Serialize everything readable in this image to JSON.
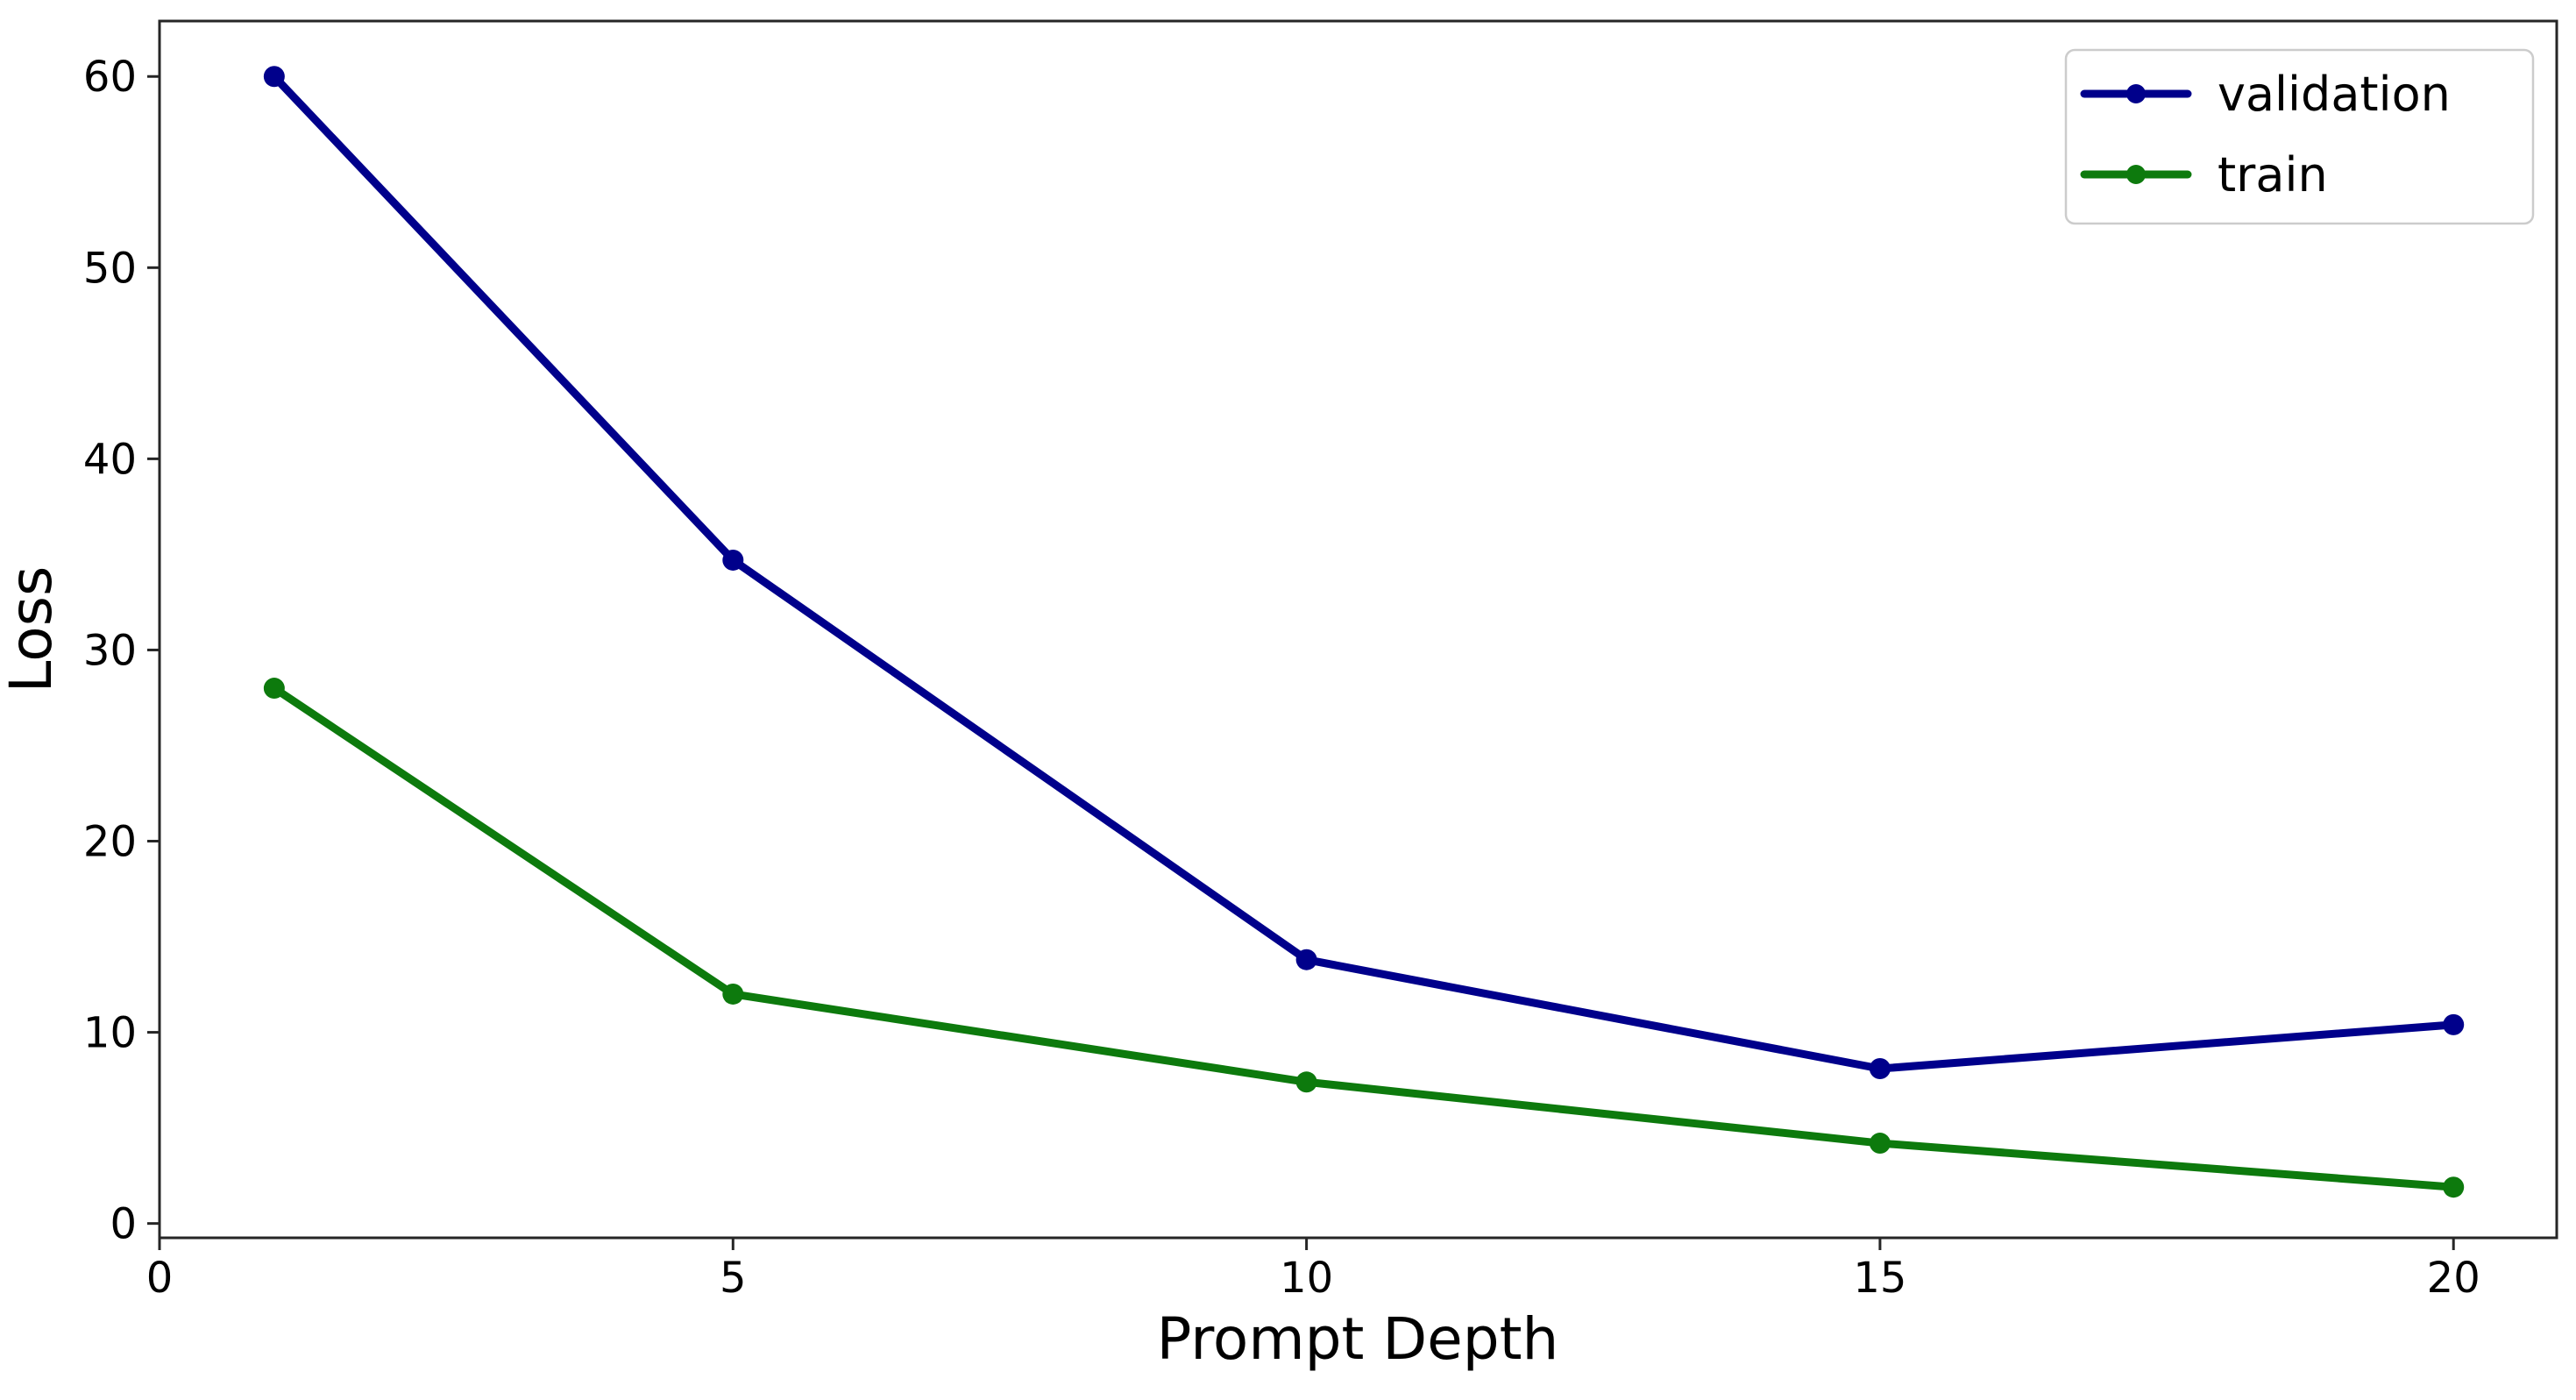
{
  "figure": {
    "background": "#ffffff",
    "spine_color": "#262626",
    "text_color": "#000000"
  },
  "chart_data": {
    "type": "line",
    "title": "",
    "xlabel": "Prompt Depth",
    "ylabel": "Loss",
    "x": [
      1,
      5,
      10,
      15,
      20
    ],
    "series": [
      {
        "name": "validation",
        "color": "#00008b",
        "values": [
          60,
          34.7,
          13.8,
          8.1,
          10.4
        ]
      },
      {
        "name": "train",
        "color": "#0d7a0d",
        "values": [
          28,
          12,
          7.4,
          4.2,
          1.9
        ]
      }
    ],
    "xticks": [
      0,
      5,
      10,
      15,
      20
    ],
    "yticks": [
      0,
      10,
      20,
      30,
      40,
      50,
      60
    ],
    "xlim": [
      0,
      20.9
    ],
    "ylim": [
      -0.75,
      62.9
    ],
    "grid": false,
    "marker": "circle",
    "legend": {
      "position": "upper right",
      "entries": [
        "validation",
        "train"
      ],
      "border_color": "#cccccc",
      "background": "#ffffff"
    }
  }
}
